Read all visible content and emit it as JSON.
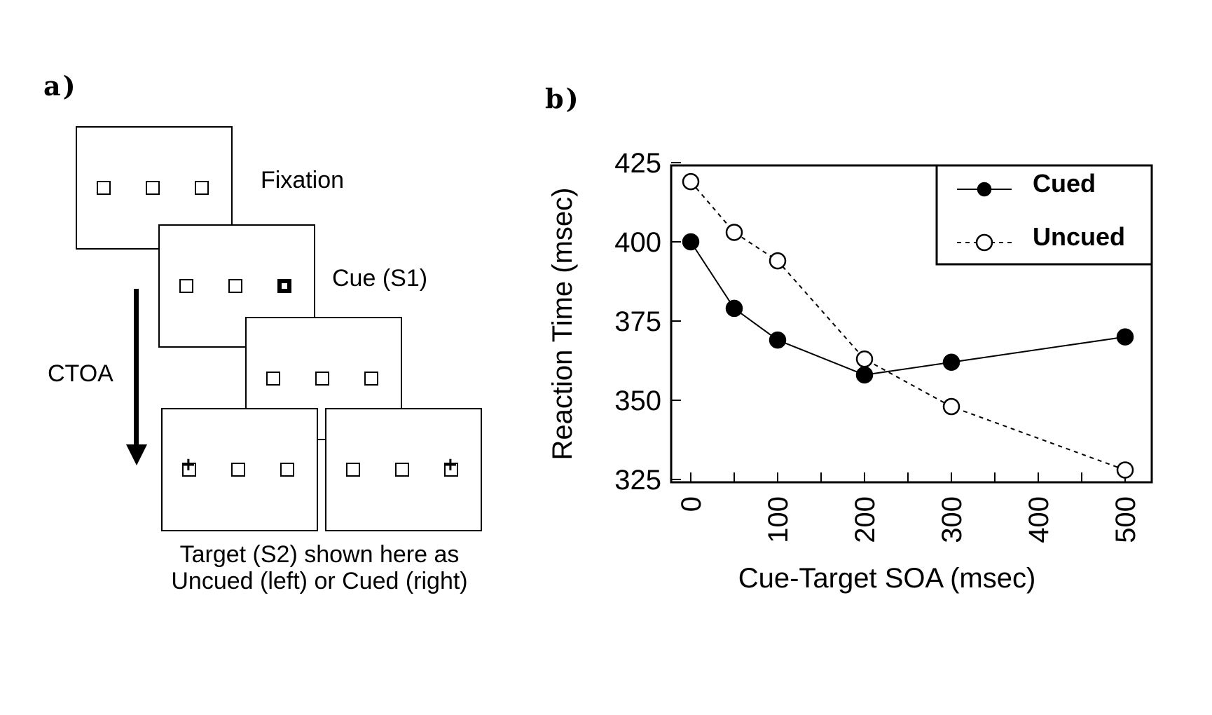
{
  "panel_a": {
    "letter": "a)",
    "fixation_label": "Fixation",
    "cue_label": "Cue (S1)",
    "ctoa_label": "CTOA",
    "caption_line1": "Target (S2) shown here as",
    "caption_line2": "Uncued (left) or Cued (right)"
  },
  "panel_b": {
    "letter": "b)"
  },
  "chart_data": {
    "type": "line",
    "xlabel": "Cue-Target SOA (msec)",
    "ylabel": "Reaction Time (msec)",
    "xlim": [
      0,
      500
    ],
    "ylim": [
      325,
      425
    ],
    "xticks": [
      0,
      100,
      200,
      300,
      400,
      500
    ],
    "yticks": [
      325,
      350,
      375,
      400,
      425
    ],
    "legend_position": "top-right",
    "series": [
      {
        "name": "Cued",
        "marker": "filled-circle",
        "line": "solid",
        "x": [
          0,
          50,
          100,
          200,
          300,
          500
        ],
        "y": [
          400,
          379,
          369,
          358,
          362,
          370
        ]
      },
      {
        "name": "Uncued",
        "marker": "open-circle",
        "line": "dashed",
        "x": [
          0,
          50,
          100,
          200,
          300,
          500
        ],
        "y": [
          419,
          403,
          394,
          363,
          348,
          328
        ]
      }
    ]
  }
}
